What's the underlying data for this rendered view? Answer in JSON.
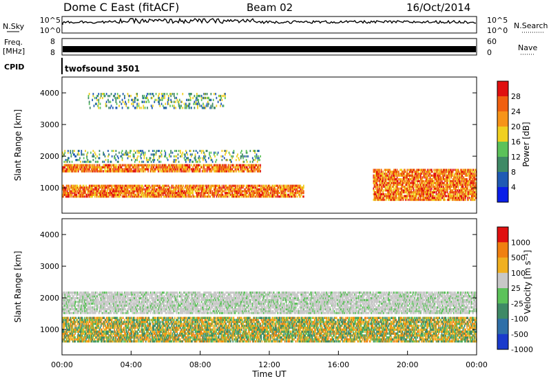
{
  "header": {
    "station": "Dome C East (fitACF)",
    "beam": "Beam 02",
    "date": "16/Oct/2014"
  },
  "top_panels": {
    "nsky_label": "N.Sky",
    "nsky_ticks": [
      "10^5",
      "10^0"
    ],
    "nsearch_label": "N.Search",
    "freq_label_line1": "Freq.",
    "freq_label_line2": "[MHz]",
    "freq_ticks": [
      "8",
      "8"
    ],
    "nave_label": "Nave",
    "nave_ticks": [
      "60",
      "0"
    ],
    "cpid_label": "CPID",
    "cpid_value": "twofsound 3501"
  },
  "chart_data": [
    {
      "type": "heatmap",
      "name": "power",
      "ylabel": "Slant Range [km]",
      "ylim": [
        200,
        4500
      ],
      "yticks": [
        1000,
        2000,
        3000,
        4000
      ],
      "colorbar": {
        "label": "Power [dB]",
        "ticks": [
          "4",
          "8",
          "12",
          "16",
          "20",
          "24",
          "28"
        ],
        "colors": [
          "#0a1ee8",
          "#1f5ab4",
          "#3f8a66",
          "#5cc25a",
          "#f0d020",
          "#f79418",
          "#f06010",
          "#e01010"
        ]
      },
      "bands": [
        {
          "range_km": [
            1500,
            1750
          ],
          "hours": [
            0,
            11.5
          ],
          "level": "20-28 dB"
        },
        {
          "range_km": [
            700,
            1100
          ],
          "hours": [
            0,
            14
          ],
          "level": "20-28 dB"
        },
        {
          "range_km": [
            600,
            1600
          ],
          "hours": [
            18,
            24
          ],
          "level": "20-28 dB"
        },
        {
          "range_km": [
            1800,
            2200
          ],
          "hours": [
            0,
            11.5
          ],
          "level": "8-16 dB"
        },
        {
          "range_km": [
            3500,
            4000
          ],
          "hours": [
            1.5,
            9.5
          ],
          "level": "8-16 dB"
        }
      ]
    },
    {
      "type": "heatmap",
      "name": "velocity",
      "ylabel": "Slant Range [km]",
      "xlabel": "Time UT",
      "ylim": [
        200,
        4500
      ],
      "yticks": [
        1000,
        2000,
        3000,
        4000
      ],
      "xticks": [
        "00:00",
        "04:00",
        "08:00",
        "12:00",
        "16:00",
        "20:00",
        "00:00"
      ],
      "colorbar": {
        "label": "Velocity [m s⁻¹]",
        "ticks": [
          "1000",
          "500",
          "100",
          "25",
          "-25",
          "-100",
          "-500",
          "-1000"
        ],
        "colors": [
          "#1a3acc",
          "#2f6fa8",
          "#3f8a66",
          "#5cc25a",
          "#c8c8c8",
          "#f0b020",
          "#f08010",
          "#e01010"
        ]
      },
      "bands": [
        {
          "range_km": [
            1500,
            2200
          ],
          "hours": [
            0,
            24
          ],
          "level": "-25 to 25 m/s"
        },
        {
          "range_km": [
            600,
            1400
          ],
          "hours": [
            0,
            24
          ],
          "level": "-100 to 100 m/s"
        }
      ]
    }
  ]
}
